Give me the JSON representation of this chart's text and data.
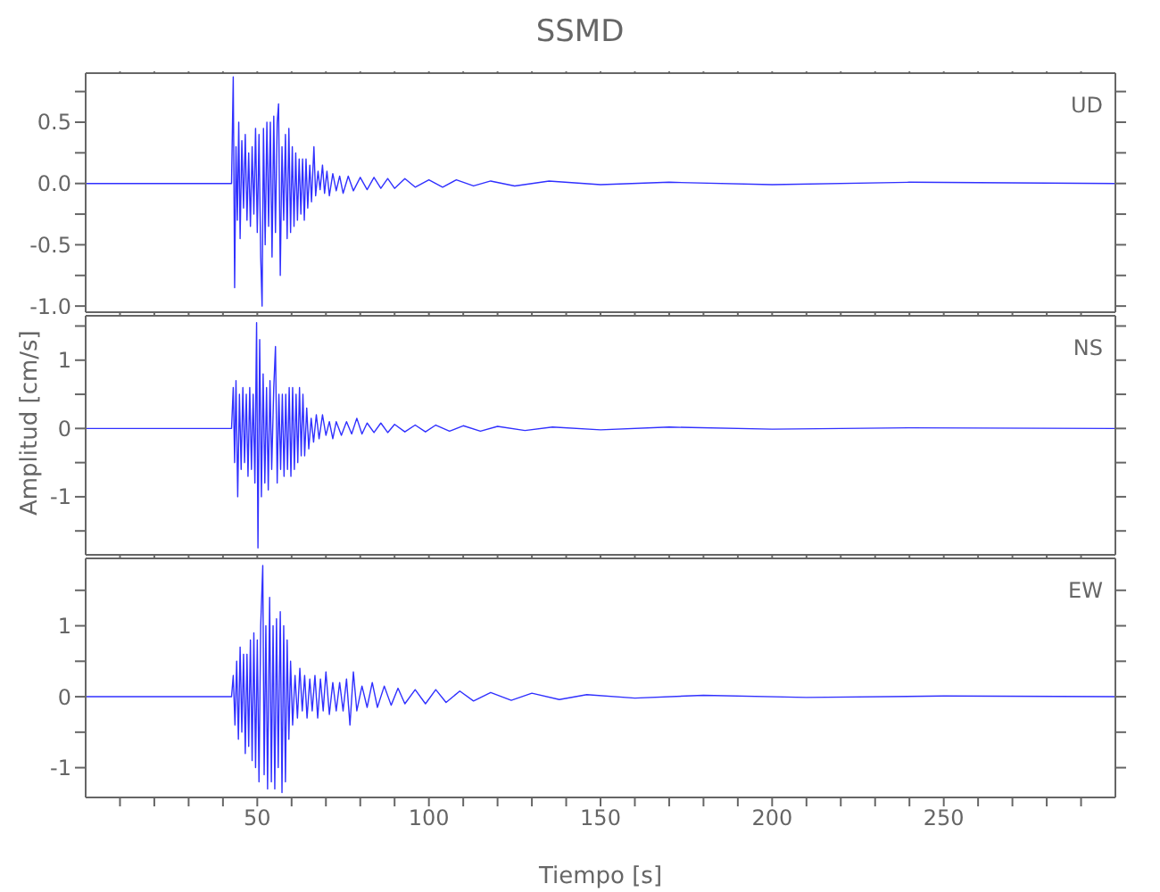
{
  "chart_data": [
    {
      "type": "line",
      "title": "SSMD",
      "x": [
        0,
        40,
        42.5,
        43,
        43.4,
        43.8,
        44.2,
        44.6,
        45,
        45.5,
        46,
        46.5,
        47,
        47.5,
        48,
        48.5,
        49,
        49.5,
        50,
        50.5,
        51,
        51.4,
        51.8,
        52.3,
        52.8,
        53.3,
        53.8,
        54.3,
        54.8,
        55.3,
        55.8,
        56.2,
        56.7,
        57.2,
        57.7,
        58.2,
        58.7,
        59.2,
        59.7,
        60.2,
        60.7,
        61.2,
        61.7,
        62.2,
        62.7,
        63.2,
        63.7,
        64.2,
        64.7,
        65.3,
        65.8,
        66.5,
        67,
        67.7,
        68.3,
        69,
        69.6,
        70.3,
        71,
        72,
        73,
        74,
        75,
        76.5,
        78,
        80,
        82,
        84,
        86,
        88,
        90,
        93,
        96,
        100,
        104,
        108,
        113,
        118,
        125,
        135,
        150,
        170,
        200,
        240,
        300
      ],
      "series": [
        {
          "name": "UD",
          "color": "#3030ff",
          "values": [
            0,
            0,
            0,
            0.87,
            -0.85,
            0.3,
            -0.3,
            0.5,
            -0.45,
            0.35,
            -0.2,
            0.4,
            -0.3,
            0.25,
            -0.35,
            0.3,
            -0.25,
            0.45,
            -0.4,
            0.4,
            -0.6,
            -1.0,
            0.45,
            -0.5,
            0.5,
            -0.35,
            0.5,
            -0.6,
            0.55,
            -0.4,
            0.5,
            0.65,
            -0.75,
            0.3,
            -0.3,
            0.4,
            -0.45,
            0.45,
            -0.4,
            0.3,
            -0.35,
            0.25,
            -0.3,
            0.2,
            -0.25,
            0.2,
            -0.3,
            0.2,
            -0.2,
            0.15,
            -0.15,
            0.3,
            -0.1,
            0.1,
            -0.05,
            0.15,
            -0.08,
            0.1,
            -0.1,
            0.08,
            -0.06,
            0.06,
            -0.08,
            0.06,
            -0.06,
            0.05,
            -0.05,
            0.05,
            -0.04,
            0.04,
            -0.04,
            0.04,
            -0.03,
            0.03,
            -0.03,
            0.03,
            -0.02,
            0.02,
            -0.02,
            0.02,
            -0.01,
            0.01,
            -0.01,
            0.01,
            0
          ]
        }
      ],
      "xlim": [
        0,
        300
      ],
      "xticks": [
        {
          "value": 10,
          "label": null
        },
        {
          "value": 20,
          "label": null
        },
        {
          "value": 30,
          "label": null
        },
        {
          "value": 40,
          "label": null
        },
        50,
        {
          "value": 60,
          "label": null
        },
        {
          "value": 70,
          "label": null
        },
        {
          "value": 80,
          "label": null
        },
        {
          "value": 90,
          "label": null
        },
        100,
        {
          "value": 110,
          "label": null
        },
        {
          "value": 120,
          "label": null
        },
        {
          "value": 130,
          "label": null
        },
        {
          "value": 140,
          "label": null
        },
        150,
        {
          "value": 160,
          "label": null
        },
        {
          "value": 170,
          "label": null
        },
        {
          "value": 180,
          "label": null
        },
        {
          "value": 190,
          "label": null
        },
        200,
        {
          "value": 210,
          "label": null
        },
        {
          "value": 220,
          "label": null
        },
        {
          "value": 230,
          "label": null
        },
        {
          "value": 240,
          "label": null
        },
        250,
        {
          "value": 260,
          "label": null
        },
        {
          "value": 270,
          "label": null
        },
        {
          "value": 280,
          "label": null
        },
        {
          "value": 290,
          "label": null
        }
      ],
      "ylim": [
        -1.05,
        0.9
      ],
      "yticks": [
        {
          "value": -1,
          "label": "-1.0"
        },
        {
          "value": -0.75,
          "label": null
        },
        {
          "value": -0.5,
          "label": "-0.5"
        },
        {
          "value": -0.25,
          "label": null
        },
        {
          "value": 0,
          "label": "0.0"
        },
        {
          "value": 0.25,
          "label": null
        },
        {
          "value": 0.5,
          "label": "0.5"
        },
        {
          "value": 0.75,
          "label": null
        }
      ],
      "tick_labels": "y",
      "grid": false,
      "legend": false,
      "marker": "none",
      "line_style": "solid"
    },
    {
      "type": "line",
      "ylabel": "Amplitud [cm/s]",
      "x": [
        0,
        42.5,
        43,
        43.4,
        43.8,
        44.3,
        44.8,
        45.3,
        45.8,
        46.3,
        46.8,
        47.3,
        47.8,
        48.3,
        48.8,
        49.3,
        49.8,
        50.2,
        50.7,
        51.2,
        51.7,
        52.2,
        52.7,
        53.2,
        53.7,
        54.2,
        54.8,
        55.3,
        55.8,
        56.3,
        56.8,
        57.3,
        57.8,
        58.3,
        58.8,
        59.3,
        59.8,
        60.3,
        60.8,
        61.3,
        61.8,
        62.3,
        62.8,
        63.3,
        63.8,
        64.4,
        65,
        65.7,
        66.4,
        67.2,
        68,
        69,
        70,
        71,
        72,
        73,
        74.5,
        76,
        77.5,
        79,
        80.5,
        82,
        84,
        86,
        88,
        90,
        93,
        96,
        99,
        102,
        106,
        110,
        115,
        120,
        128,
        136,
        150,
        170,
        200,
        240,
        300
      ],
      "series": [
        {
          "name": "NS",
          "color": "#3030ff",
          "values": [
            0,
            0,
            0.6,
            -0.5,
            0.7,
            -1.0,
            0.5,
            -0.6,
            0.6,
            -0.5,
            0.5,
            -0.7,
            0.6,
            -0.6,
            0.5,
            -0.8,
            1.55,
            -1.75,
            1.3,
            -1.0,
            0.8,
            -0.8,
            0.6,
            -0.9,
            0.7,
            -0.6,
            0.6,
            1.2,
            -0.8,
            0.5,
            -0.6,
            0.5,
            -0.7,
            0.5,
            -0.6,
            0.6,
            -0.7,
            0.6,
            -0.6,
            0.5,
            -0.5,
            0.6,
            -0.4,
            0.5,
            -0.4,
            0.3,
            -0.3,
            0.15,
            -0.2,
            0.2,
            -0.15,
            0.2,
            -0.1,
            0.1,
            -0.15,
            0.1,
            -0.1,
            0.1,
            -0.08,
            0.15,
            -0.08,
            0.08,
            -0.06,
            0.08,
            -0.06,
            0.06,
            -0.05,
            0.05,
            -0.05,
            0.05,
            -0.04,
            0.04,
            -0.04,
            0.03,
            -0.03,
            0.02,
            -0.02,
            0.02,
            -0.01,
            0.01,
            0
          ]
        }
      ],
      "xlim": [
        0,
        300
      ],
      "xticks": [
        {
          "value": 10,
          "label": null
        },
        {
          "value": 20,
          "label": null
        },
        {
          "value": 30,
          "label": null
        },
        {
          "value": 40,
          "label": null
        },
        50,
        {
          "value": 60,
          "label": null
        },
        {
          "value": 70,
          "label": null
        },
        {
          "value": 80,
          "label": null
        },
        {
          "value": 90,
          "label": null
        },
        100,
        {
          "value": 110,
          "label": null
        },
        {
          "value": 120,
          "label": null
        },
        {
          "value": 130,
          "label": null
        },
        {
          "value": 140,
          "label": null
        },
        150,
        {
          "value": 160,
          "label": null
        },
        {
          "value": 170,
          "label": null
        },
        {
          "value": 180,
          "label": null
        },
        {
          "value": 190,
          "label": null
        },
        200,
        {
          "value": 210,
          "label": null
        },
        {
          "value": 220,
          "label": null
        },
        {
          "value": 230,
          "label": null
        },
        {
          "value": 240,
          "label": null
        },
        250,
        {
          "value": 260,
          "label": null
        },
        {
          "value": 270,
          "label": null
        },
        {
          "value": 280,
          "label": null
        },
        {
          "value": 290,
          "label": null
        }
      ],
      "ylim": [
        -1.85,
        1.65
      ],
      "yticks": [
        {
          "value": -1.5,
          "label": null
        },
        -1,
        {
          "value": -0.5,
          "label": null
        },
        0,
        {
          "value": 0.5,
          "label": null
        },
        1,
        {
          "value": 1.5,
          "label": null
        }
      ],
      "tick_labels": "y",
      "grid": false,
      "legend": false,
      "marker": "none",
      "line_style": "solid"
    },
    {
      "type": "line",
      "xlabel": "Tiempo [s]",
      "x": [
        0,
        42.5,
        43,
        43.5,
        44,
        44.5,
        45,
        45.5,
        46,
        46.5,
        47,
        47.5,
        48,
        48.5,
        49,
        49.5,
        50,
        50.5,
        51,
        51.6,
        52,
        52.5,
        53,
        53.6,
        54.1,
        54.6,
        55.1,
        55.6,
        56.1,
        56.7,
        57.2,
        57.7,
        58.2,
        58.7,
        59.2,
        59.7,
        60.3,
        61,
        61.7,
        62.4,
        63.1,
        63.8,
        64.5,
        65.3,
        66,
        66.8,
        67.6,
        68.4,
        69.2,
        70,
        71,
        72,
        73,
        74,
        75,
        76,
        77,
        78,
        79,
        80.5,
        82,
        83.5,
        85,
        87,
        89,
        91,
        93,
        96,
        99,
        102,
        105,
        109,
        113,
        118,
        124,
        130,
        138,
        146,
        160,
        180,
        210,
        250,
        300
      ],
      "series": [
        {
          "name": "EW",
          "color": "#3030ff",
          "values": [
            0,
            0,
            0.3,
            -0.4,
            0.5,
            -0.6,
            0.7,
            -0.5,
            0.6,
            -0.8,
            0.6,
            -0.7,
            0.8,
            -0.9,
            0.9,
            -1.0,
            0.8,
            -1.2,
            1.0,
            1.85,
            -1.1,
            1.0,
            -1.3,
            1.4,
            -1.2,
            1.0,
            -1.3,
            1.1,
            -1.0,
            1.2,
            -1.35,
            1.0,
            -1.2,
            0.8,
            -0.6,
            0.5,
            -0.4,
            0.3,
            -0.3,
            0.4,
            -0.2,
            0.3,
            -0.3,
            0.25,
            -0.2,
            0.3,
            -0.3,
            0.25,
            -0.2,
            0.35,
            -0.25,
            0.2,
            -0.2,
            0.2,
            -0.2,
            0.25,
            -0.4,
            0.35,
            -0.2,
            0.15,
            -0.15,
            0.2,
            -0.15,
            0.15,
            -0.12,
            0.12,
            -0.1,
            0.1,
            -0.1,
            0.1,
            -0.08,
            0.08,
            -0.06,
            0.06,
            -0.05,
            0.05,
            -0.04,
            0.03,
            -0.02,
            0.02,
            -0.01,
            0.01,
            0
          ]
        }
      ],
      "xlim": [
        0,
        300
      ],
      "xticks": [
        {
          "value": 10,
          "label": null
        },
        {
          "value": 20,
          "label": null
        },
        {
          "value": 30,
          "label": null
        },
        {
          "value": 40,
          "label": null
        },
        50,
        {
          "value": 60,
          "label": null
        },
        {
          "value": 70,
          "label": null
        },
        {
          "value": 80,
          "label": null
        },
        {
          "value": 90,
          "label": null
        },
        100,
        {
          "value": 110,
          "label": null
        },
        {
          "value": 120,
          "label": null
        },
        {
          "value": 130,
          "label": null
        },
        {
          "value": 140,
          "label": null
        },
        150,
        {
          "value": 160,
          "label": null
        },
        {
          "value": 170,
          "label": null
        },
        {
          "value": 180,
          "label": null
        },
        {
          "value": 190,
          "label": null
        },
        200,
        {
          "value": 210,
          "label": null
        },
        {
          "value": 220,
          "label": null
        },
        {
          "value": 230,
          "label": null
        },
        {
          "value": 240,
          "label": null
        },
        250,
        {
          "value": 260,
          "label": null
        },
        {
          "value": 270,
          "label": null
        },
        {
          "value": 280,
          "label": null
        },
        {
          "value": 290,
          "label": null
        }
      ],
      "ylim": [
        -1.42,
        1.95
      ],
      "yticks": [
        {
          "value": -1,
          "label": "-1"
        },
        {
          "value": -0.5,
          "label": null
        },
        0,
        {
          "value": 0.5,
          "label": null
        },
        1,
        {
          "value": 1.5,
          "label": null
        }
      ],
      "grid": false,
      "legend": false,
      "marker": "none",
      "line_style": "solid"
    }
  ]
}
